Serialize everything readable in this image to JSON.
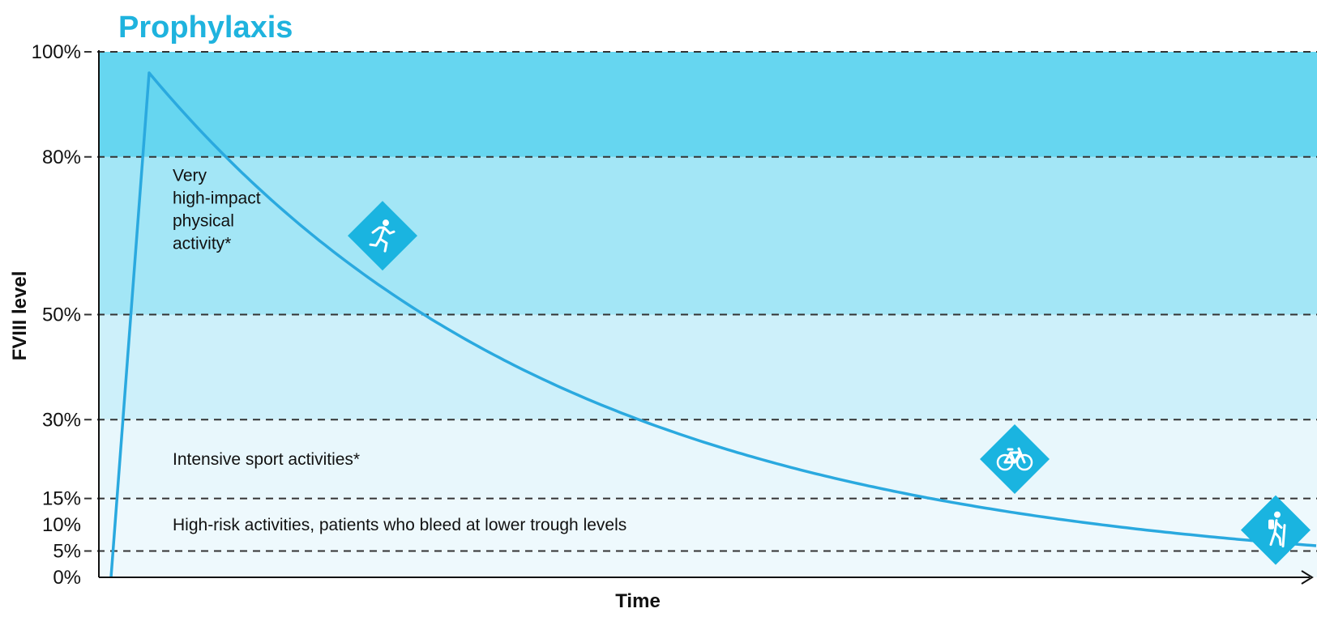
{
  "chart_data": {
    "type": "line",
    "title": "Prophylaxis",
    "xlabel": "Time",
    "ylabel": "FVIII level",
    "ylim": [
      0,
      100
    ],
    "y_ticks": [
      {
        "value": 0,
        "label": "0%"
      },
      {
        "value": 5,
        "label": "5%"
      },
      {
        "value": 10,
        "label": "10%"
      },
      {
        "value": 15,
        "label": "15%"
      },
      {
        "value": 30,
        "label": "30%"
      },
      {
        "value": 50,
        "label": "50%"
      },
      {
        "value": 80,
        "label": "80%"
      },
      {
        "value": 100,
        "label": "100%"
      }
    ],
    "dashed_reference_lines": [
      5,
      15,
      30,
      50,
      80,
      100
    ],
    "bands": [
      {
        "from": 0,
        "to": 15,
        "color": "#eef9fd"
      },
      {
        "from": 15,
        "to": 30,
        "color": "#e8f7fc"
      },
      {
        "from": 30,
        "to": 50,
        "color": "#cdf0fa"
      },
      {
        "from": 50,
        "to": 80,
        "color": "#a3e6f6"
      },
      {
        "from": 80,
        "to": 100,
        "color": "#66d6f0"
      }
    ],
    "band_annotations": [
      {
        "band_value": 70,
        "lines": [
          "Very",
          "high-impact",
          "physical",
          "activity*"
        ]
      },
      {
        "band_value": 22.5,
        "lines": [
          "Intensive sport activities*"
        ]
      },
      {
        "band_value": 10,
        "lines": [
          "High-risk activities, patients who bleed at lower trough levels"
        ]
      }
    ],
    "series": [
      {
        "color": "#2aa9df",
        "curve": "peak then exponential decay",
        "peak_value": 96,
        "end_value": 6
      }
    ],
    "activity_icons": [
      {
        "icon": "running-icon",
        "value": 65
      },
      {
        "icon": "bicycle-icon",
        "value": 22.5
      },
      {
        "icon": "hiking-icon",
        "value": 9
      }
    ],
    "colors": {
      "title": "#1fb3de",
      "line": "#2aa9df",
      "icon_fill": "#1ab4e0",
      "axis": "#111111",
      "dash": "#333333"
    }
  }
}
